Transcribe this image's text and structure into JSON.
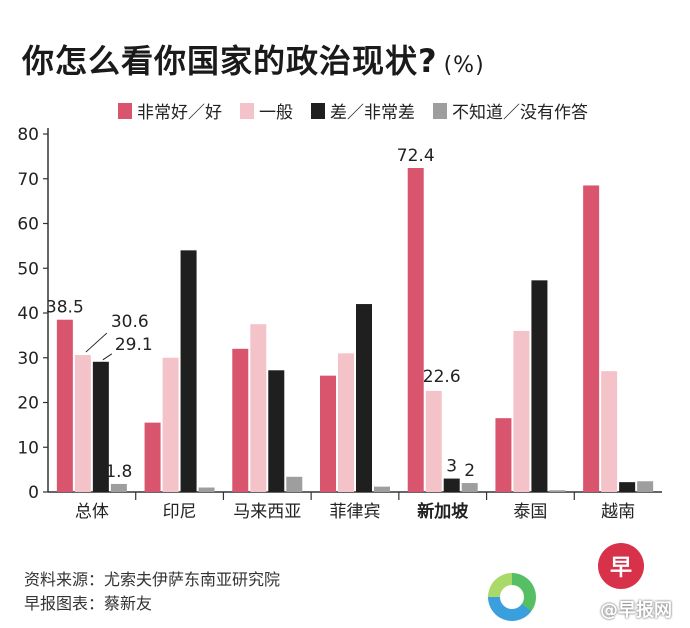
{
  "title": "你怎么看你国家的政治现状?",
  "unit": "(%)",
  "source_line1": "资料来源：尤索夫伊萨东南亚研究院",
  "source_line2": "早报图表：蔡新友",
  "logo_text": "早",
  "watermark": "@早报网",
  "colors": {
    "good": "#d9556e",
    "average": "#f4c3c9",
    "bad": "#1f1f1f",
    "unknown": "#9e9e9e",
    "axis": "#333333"
  },
  "chart_data": {
    "type": "bar",
    "title": "你怎么看你国家的政治现状?",
    "ylim": [
      0,
      80
    ],
    "yticks": [
      0,
      10,
      20,
      30,
      40,
      50,
      60,
      70,
      80
    ],
    "categories": [
      "总体",
      "印尼",
      "马来西亚",
      "菲律宾",
      "新加坡",
      "泰国",
      "越南"
    ],
    "bold_category": "新加坡",
    "series": [
      {
        "name": "非常好／好",
        "values": [
          38.5,
          15.5,
          32,
          26,
          72.4,
          16.5,
          68.5
        ]
      },
      {
        "name": "一般",
        "values": [
          30.6,
          30,
          37.5,
          31,
          22.6,
          36,
          27
        ]
      },
      {
        "name": "差／非常差",
        "values": [
          29.1,
          54,
          27.2,
          42,
          3,
          47.3,
          2.2
        ]
      },
      {
        "name": "不知道／没有作答",
        "values": [
          1.8,
          1,
          3.4,
          1.2,
          2,
          0.4,
          2.4
        ]
      }
    ],
    "data_labels": [
      {
        "category": 0,
        "series": 0,
        "text": "38.5"
      },
      {
        "category": 0,
        "series": 1,
        "text": "30.6"
      },
      {
        "category": 0,
        "series": 2,
        "text": "29.1"
      },
      {
        "category": 0,
        "series": 3,
        "text": "1.8"
      },
      {
        "category": 4,
        "series": 0,
        "text": "72.4"
      },
      {
        "category": 4,
        "series": 1,
        "text": "22.6"
      },
      {
        "category": 4,
        "series": 2,
        "text": "3"
      },
      {
        "category": 4,
        "series": 3,
        "text": "2"
      }
    ],
    "grid": false,
    "legend_position": "top"
  }
}
